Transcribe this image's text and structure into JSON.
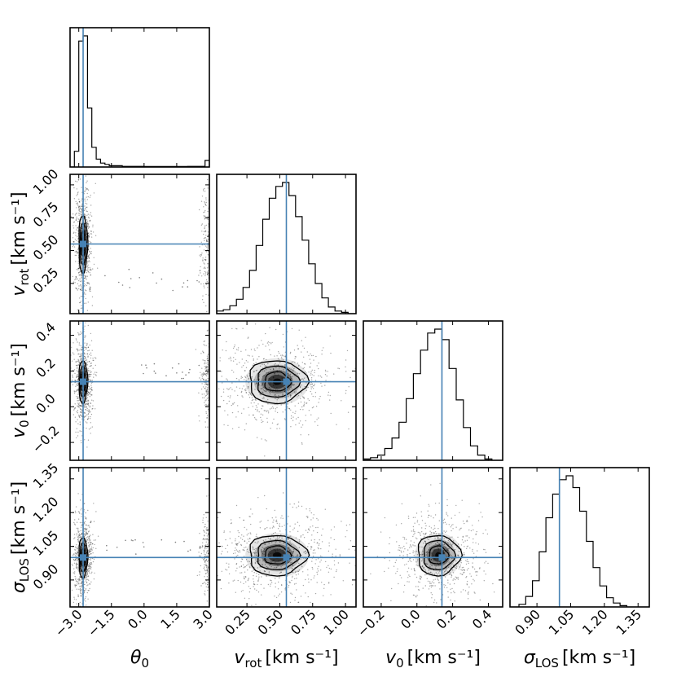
{
  "chart_data": {
    "type": "corner",
    "parameters": [
      {
        "key": "theta0",
        "label_main": "θ",
        "label_sub": "0",
        "unit": "",
        "range": [
          -3.4,
          3.0
        ],
        "truth": -2.8,
        "ticks": [
          -3.0,
          -1.5,
          0.0,
          1.5,
          3.0
        ],
        "tick_labels": [
          "−3.0",
          "−1.5",
          "0.0",
          "1.5",
          "3.0"
        ]
      },
      {
        "key": "v_rot",
        "label_main": "v",
        "label_sub": "rot",
        "unit": "[km s⁻¹]",
        "range": [
          0.02,
          1.08
        ],
        "truth": 0.55,
        "ticks": [
          0.25,
          0.5,
          0.75,
          1.0
        ],
        "tick_labels": [
          "0.25",
          "0.50",
          "0.75",
          "1.00"
        ]
      },
      {
        "key": "v0",
        "label_main": "v",
        "label_sub": "0",
        "unit": "[km s⁻¹]",
        "range": [
          -0.3,
          0.48
        ],
        "truth": 0.14,
        "ticks": [
          -0.2,
          0.0,
          0.2,
          0.4
        ],
        "tick_labels": [
          "−0.2",
          "0.0",
          "0.2",
          "0.4"
        ]
      },
      {
        "key": "sigma_los",
        "label_main": "σ",
        "label_sub": "LOS",
        "unit": "[km s⁻¹]",
        "range": [
          0.78,
          1.4
        ],
        "truth": 1.0,
        "ticks": [
          0.9,
          1.05,
          1.2,
          1.35
        ],
        "tick_labels": [
          "0.90",
          "1.05",
          "1.20",
          "1.35"
        ]
      }
    ],
    "histograms": [
      {
        "param": "theta0",
        "edges": [
          -3.4,
          -3.2,
          -3.0,
          -2.8,
          -2.6,
          -2.4,
          -2.2,
          -2.0,
          -1.8,
          -1.6,
          -1.0,
          0.0,
          1.0,
          2.0,
          2.8,
          3.0
        ],
        "counts": [
          0,
          12,
          96,
          100,
          45,
          15,
          6,
          3,
          2,
          1,
          0.5,
          0.4,
          0.4,
          0.5,
          5
        ]
      },
      {
        "param": "v_rot",
        "edges": [
          0.02,
          0.07,
          0.12,
          0.17,
          0.22,
          0.27,
          0.32,
          0.37,
          0.42,
          0.47,
          0.52,
          0.57,
          0.62,
          0.67,
          0.72,
          0.77,
          0.82,
          0.87,
          0.92,
          0.97,
          1.02
        ],
        "counts": [
          2,
          3,
          6,
          11,
          20,
          33,
          52,
          72,
          88,
          97,
          100,
          90,
          74,
          56,
          38,
          23,
          12,
          5,
          2,
          1
        ]
      },
      {
        "param": "v0",
        "edges": [
          -0.3,
          -0.26,
          -0.22,
          -0.18,
          -0.14,
          -0.1,
          -0.06,
          -0.02,
          0.02,
          0.06,
          0.1,
          0.14,
          0.18,
          0.22,
          0.26,
          0.3,
          0.34,
          0.38,
          0.42
        ],
        "counts": [
          1,
          2,
          4,
          9,
          17,
          29,
          47,
          66,
          84,
          97,
          100,
          92,
          70,
          46,
          25,
          11,
          4,
          1
        ]
      },
      {
        "param": "sigma_los",
        "edges": [
          0.82,
          0.85,
          0.88,
          0.91,
          0.94,
          0.97,
          1.0,
          1.03,
          1.06,
          1.09,
          1.12,
          1.15,
          1.18,
          1.21,
          1.24,
          1.27,
          1.3
        ],
        "counts": [
          2,
          8,
          20,
          42,
          68,
          86,
          97,
          100,
          91,
          73,
          50,
          30,
          16,
          7,
          3,
          1
        ]
      }
    ],
    "posterior_2d": [
      {
        "x": "theta0",
        "y": "v_rot",
        "center": [
          -2.8,
          0.55
        ],
        "spread": [
          0.1,
          0.11
        ]
      },
      {
        "x": "theta0",
        "y": "v0",
        "center": [
          -2.8,
          0.14
        ],
        "spread": [
          0.1,
          0.06
        ]
      },
      {
        "x": "theta0",
        "y": "sigma_los",
        "center": [
          -2.8,
          1.0
        ],
        "spread": [
          0.1,
          0.045
        ]
      },
      {
        "x": "v_rot",
        "y": "v0",
        "center": [
          0.48,
          0.14
        ],
        "spread": [
          0.11,
          0.06
        ]
      },
      {
        "x": "v_rot",
        "y": "sigma_los",
        "center": [
          0.48,
          1.01
        ],
        "spread": [
          0.11,
          0.045
        ]
      },
      {
        "x": "v0",
        "y": "sigma_los",
        "center": [
          0.12,
          1.01
        ],
        "spread": [
          0.06,
          0.045
        ]
      }
    ],
    "truths": {
      "theta0": -2.8,
      "v_rot": 0.55,
      "v0": 0.14,
      "sigma_los": 1.0
    },
    "colors": {
      "truth_line": "#4682b4",
      "density": "#000000"
    }
  }
}
